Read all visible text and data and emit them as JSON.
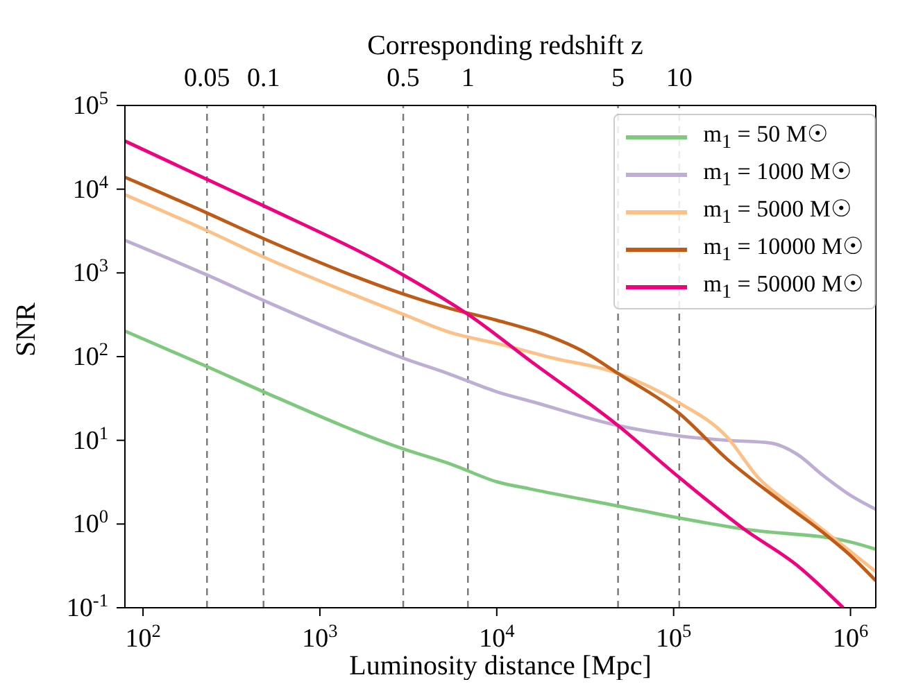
{
  "chart_data": {
    "type": "line",
    "xlabel": "Luminosity distance [Mpc]",
    "ylabel": "SNR",
    "annotations": [
      "Corresponding redshift z",
      "0.05",
      "0.1",
      "0.5",
      "1",
      "5",
      "10"
    ],
    "log": "xy",
    "xlim": [
      79,
      1390000
    ],
    "ylim": [
      0.1,
      100000
    ],
    "xticks": [
      {
        "value": 100,
        "label": "10$^{2}$"
      },
      {
        "value": 1000,
        "label": "10$^{3}$"
      },
      {
        "value": 10000,
        "label": "10$^{4}$"
      },
      {
        "value": 100000,
        "label": "10$^{5}$"
      },
      {
        "value": 1000000,
        "label": "10$^{6}$"
      }
    ],
    "yticks": [
      {
        "value": 0.1,
        "label": "10$^{-1}$"
      },
      {
        "value": 1,
        "label": "10$^{0}$"
      },
      {
        "value": 10,
        "label": "10$^{1}$"
      },
      {
        "value": 100,
        "label": "10$^{2}$"
      },
      {
        "value": 1000,
        "label": "10$^{3}$"
      },
      {
        "value": 10000,
        "label": "10$^{4}$"
      },
      {
        "value": 100000,
        "label": "10$^{5}$"
      }
    ],
    "legend": "top right",
    "line_style": "solid",
    "marker": "none",
    "ref_lines": [
      {
        "axis": "x",
        "value": 230,
        "color": "#777777",
        "line_style": "dashed"
      },
      {
        "axis": "x",
        "value": 480,
        "color": "#777777",
        "line_style": "dashed"
      },
      {
        "axis": "x",
        "value": 2960,
        "color": "#777777",
        "line_style": "dashed"
      },
      {
        "axis": "x",
        "value": 6870,
        "color": "#777777",
        "line_style": "dashed"
      },
      {
        "axis": "x",
        "value": 48500,
        "color": "#777777",
        "line_style": "dashed"
      },
      {
        "axis": "x",
        "value": 107600,
        "color": "#777777",
        "line_style": "dashed"
      }
    ],
    "series": [
      {
        "name": "m$_{1}$ = 50 M☉",
        "color": "#7fc97f",
        "x": [
          79,
          230,
          480,
          2960,
          5500,
          10000,
          15800,
          48500,
          107600,
          250000,
          1000000,
          1390000
        ],
        "values": [
          202,
          76,
          38,
          7.9,
          5.2,
          3.2,
          2.6,
          1.64,
          1.18,
          0.87,
          0.61,
          0.5
        ]
      },
      {
        "name": "m$_{1}$ = 1000 M☉",
        "color": "#beaed4",
        "x": [
          79,
          230,
          480,
          2960,
          5500,
          10000,
          15800,
          48500,
          107600,
          200000,
          350000,
          500000,
          700000,
          1000000,
          1390000
        ],
        "values": [
          2450,
          945,
          469,
          96,
          61,
          38,
          29,
          15,
          11.3,
          10,
          9.3,
          6.8,
          3.8,
          2.2,
          1.5
        ]
      },
      {
        "name": "m$_{1}$ = 5000 M☉",
        "color": "#fdc086",
        "x": [
          79,
          230,
          480,
          2960,
          5500,
          10000,
          20000,
          48500,
          107600,
          200000,
          300000,
          500000,
          1000000,
          1390000
        ],
        "values": [
          8600,
          3200,
          1550,
          320,
          193,
          144,
          98,
          63,
          28,
          11,
          3.6,
          1.5,
          0.47,
          0.27
        ]
      },
      {
        "name": "m$_{1}$ = 10000 M☉",
        "color": "#bf5b17",
        "x": [
          79,
          230,
          480,
          2960,
          5500,
          10000,
          20000,
          30000,
          48500,
          107600,
          200000,
          400000,
          700000,
          1000000,
          1390000
        ],
        "values": [
          13900,
          5200,
          2570,
          560,
          373,
          272,
          174,
          119,
          63,
          21,
          6,
          1.9,
          0.79,
          0.42,
          0.21
        ]
      },
      {
        "name": "m$_{1}$ = 50000 M☉",
        "color": "#f0027f",
        "x": [
          79,
          230,
          480,
          2960,
          6870,
          15800,
          48500,
          107600,
          250000,
          500000,
          910000
        ],
        "values": [
          37600,
          13100,
          6350,
          945,
          320,
          86,
          15,
          3.6,
          0.87,
          0.32,
          0.1
        ]
      }
    ]
  }
}
